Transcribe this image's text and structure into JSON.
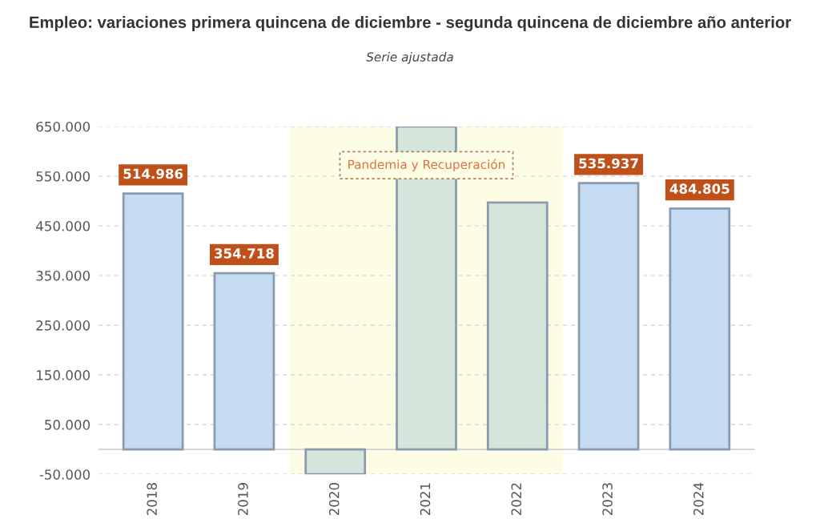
{
  "chart_data": {
    "type": "bar",
    "title": "Empleo: variaciones primera quincena de diciembre - segunda quincena de diciembre año anterior",
    "subtitle": "Serie ajustada",
    "categories": [
      "2018",
      "2019",
      "2020",
      "2021",
      "2022",
      "2023",
      "2024"
    ],
    "values": [
      514986,
      354718,
      -50000,
      650000,
      497000,
      535937,
      484805
    ],
    "colors": [
      "#c5dbf2",
      "#c5dbf2",
      "#d6e5dc",
      "#d6e5dc",
      "#d6e5dc",
      "#c5dbf2",
      "#c5dbf2"
    ],
    "value_labels": [
      "514.986",
      "354.718",
      null,
      null,
      null,
      "535.937",
      "484.805"
    ],
    "ylim": [
      -50000,
      650000
    ],
    "yticks": [
      {
        "value": -50000,
        "label": "-50.000"
      },
      {
        "value": 50000,
        "label": "50.000"
      },
      {
        "value": 150000,
        "label": "150.000"
      },
      {
        "value": 250000,
        "label": "250.000"
      },
      {
        "value": 350000,
        "label": "350.000"
      },
      {
        "value": 450000,
        "label": "450.000"
      },
      {
        "value": 550000,
        "label": "550.000"
      },
      {
        "value": 650000,
        "label": "650.000"
      }
    ],
    "bands": [
      {
        "axis": "x",
        "from": "2020",
        "to": "2022",
        "label": "Pandemia y Recuperación",
        "color": "#fdfde6"
      }
    ],
    "grid": "y"
  }
}
